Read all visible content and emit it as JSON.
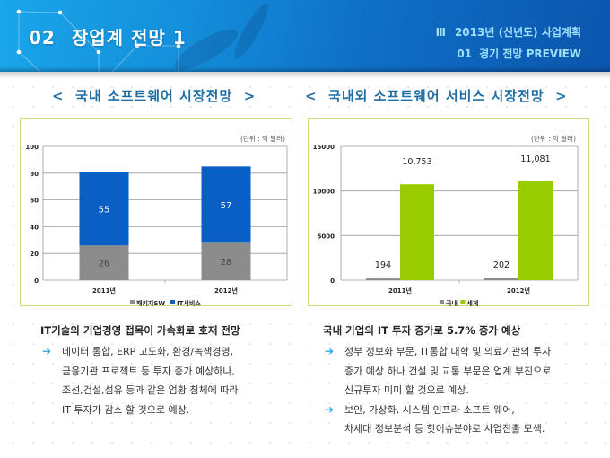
{
  "header": {
    "section_number": "02",
    "title": "장업계 전망 1",
    "chapter_roman": "Ⅲ",
    "chapter_title": "2013년 (신년도) 사업계획",
    "sub_number": "01",
    "sub_title": "경기 전망 PREVIEW"
  },
  "colors": {
    "header_blue": "#148fdb",
    "heading_blue": "#1f6fa6",
    "box_border": "#c7dc76",
    "arrow": "#2aa7e8"
  },
  "sections": {
    "left_heading": "<  국내 소프트웨어 시장전망  >",
    "right_heading": "<  국내외 소프트웨어 서비스 시장전망  >"
  },
  "chart_data": [
    {
      "type": "bar",
      "stacked": true,
      "title": "국내 소프트웨어 시장전망",
      "unit_label": "(단위 : 억 달러)",
      "categories": [
        "2011년",
        "2012년"
      ],
      "series": [
        {
          "name": "패키지SW",
          "color": "#8c8c8c",
          "values": [
            26,
            28
          ]
        },
        {
          "name": "IT서비스",
          "color": "#0a5fc4",
          "values": [
            55,
            57
          ]
        }
      ],
      "ylim": [
        0,
        100
      ],
      "yticks": [
        0,
        20,
        40,
        60,
        80,
        100
      ],
      "grid": true,
      "legend": "bottom",
      "data_labels": true
    },
    {
      "type": "bar",
      "stacked": false,
      "title": "국내외 소프트웨어 서비스 시장전망",
      "unit_label": "(단위 : 억 달러)",
      "categories": [
        "2011년",
        "2012년"
      ],
      "series": [
        {
          "name": "국내",
          "color": "#8c8c8c",
          "values": [
            194,
            202
          ],
          "labels": [
            "194",
            "202"
          ]
        },
        {
          "name": "세계",
          "color": "#99cc00",
          "values": [
            10753,
            11081
          ],
          "labels": [
            "10,753",
            "11,081"
          ]
        }
      ],
      "ylim": [
        0,
        15000
      ],
      "yticks": [
        0,
        5000,
        10000,
        15000
      ],
      "grid": true,
      "legend": "bottom",
      "data_labels": true
    }
  ],
  "text_left": {
    "heading": "IT기술의 기업경영 접목이 가속화로 호재 전망",
    "items": [
      {
        "lines": [
          "데이터 통합, ERP 고도화, 환경/녹색경영,",
          "금융기관 프로젝트 등 투자 증가 예상하나,",
          "조선,건설,섬유 등과 같은 업황 침체에 따라",
          "IT 투자가 감소 할 것으로 예상."
        ]
      }
    ]
  },
  "text_right": {
    "heading": "국내 기업의 IT 투자 증가로 5.7% 증가 예상",
    "items": [
      {
        "lines": [
          "정부 정보화 부문, IT통합 대학 및 의료기관의 투자",
          "증가 예상 하나 건설 및 교통 부문은 업계 부진으로",
          "신규투자 미미 할 것으로 예상."
        ]
      },
      {
        "lines": [
          "보안, 가상화, 시스템 인프라 소프트 웨어,",
          "차세대 정보분석 등 핫이슈분야로 사업진출 모색."
        ]
      }
    ],
    "arrow_icon": "➔"
  }
}
